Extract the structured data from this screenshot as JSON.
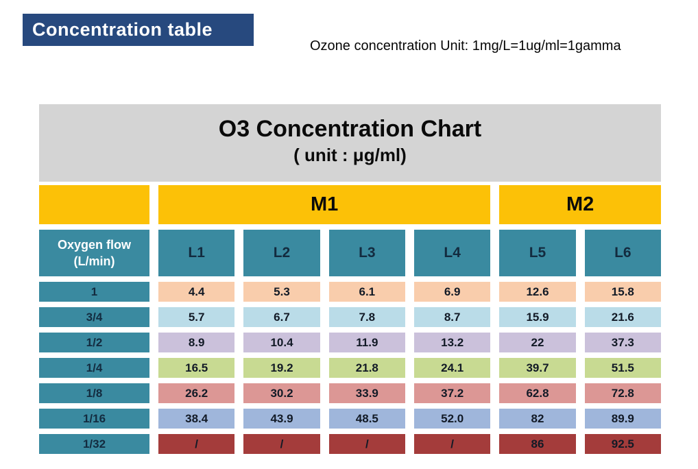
{
  "slide": {
    "badge_label": "Concentration table",
    "unit_note": "Ozone concentration Unit: 1mg/L=1ug/ml=1gamma"
  },
  "chart_data": {
    "type": "table",
    "title": "O3 Concentration Chart",
    "subtitle": "( unit : μg/ml)",
    "group_headers": [
      {
        "label": "M1",
        "span": 4
      },
      {
        "label": "M2",
        "span": 2
      }
    ],
    "corner_header_line1": "Oxygen flow",
    "corner_header_line2": "(L/min)",
    "column_headers": [
      "L1",
      "L2",
      "L3",
      "L4",
      "L5",
      "L6"
    ],
    "rows": [
      {
        "flow": "1",
        "values": [
          "4.4",
          "5.3",
          "6.1",
          "6.9",
          "12.6",
          "15.8"
        ],
        "row_color": "#F9CDAC"
      },
      {
        "flow": "3/4",
        "values": [
          "5.7",
          "6.7",
          "7.8",
          "8.7",
          "15.9",
          "21.6"
        ],
        "row_color": "#BADCE8"
      },
      {
        "flow": "1/2",
        "values": [
          "8.9",
          "10.4",
          "11.9",
          "13.2",
          "22",
          "37.3"
        ],
        "row_color": "#CBC1DB"
      },
      {
        "flow": "1/4",
        "values": [
          "16.5",
          "19.2",
          "21.8",
          "24.1",
          "39.7",
          "51.5"
        ],
        "row_color": "#C8DA92"
      },
      {
        "flow": "1/8",
        "values": [
          "26.2",
          "30.2",
          "33.9",
          "37.2",
          "62.8",
          "72.8"
        ],
        "row_color": "#DC9795"
      },
      {
        "flow": "1/16",
        "values": [
          "38.4",
          "43.9",
          "48.5",
          "52.0",
          "82",
          "89.9"
        ],
        "row_color": "#9FB6DB"
      },
      {
        "flow": "1/32",
        "values": [
          "/",
          "/",
          "/",
          "/",
          "86",
          "92.5"
        ],
        "row_color": "#A43C3B"
      }
    ],
    "colors": {
      "badge_bg": "#27497E",
      "group_header_bg": "#FCC107",
      "header_bg": "#3A8AA0",
      "title_bg": "#D4D4D4",
      "header_text": "#132B3F",
      "value_text": "#121A26"
    }
  }
}
